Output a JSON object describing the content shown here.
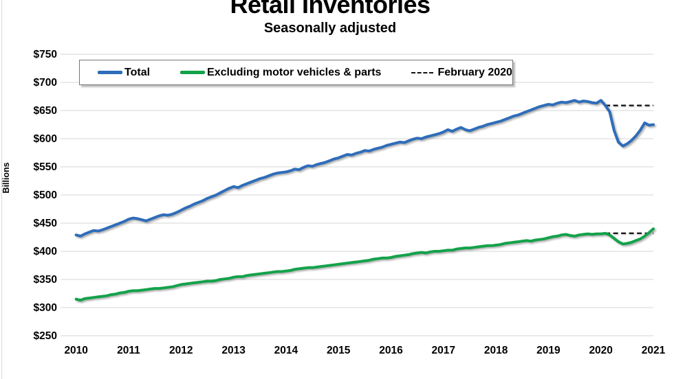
{
  "title": "Retail Inventories",
  "subtitle": "Seasonally adjusted",
  "y_axis_label": "Billions",
  "legend": {
    "items": [
      {
        "label": "Total",
        "color": "#2e6db9",
        "style": "solid"
      },
      {
        "label": "Excluding motor vehicles & parts",
        "color": "#13a24a",
        "style": "solid"
      },
      {
        "label": "February 2020",
        "color": "#111111",
        "style": "dashed"
      }
    ]
  },
  "chart_data": {
    "type": "line",
    "title": "Retail Inventories",
    "subtitle": "Seasonally adjusted",
    "ylabel": "Billions",
    "xlabel": "",
    "grid": true,
    "legend_position": "top",
    "ylim": [
      250,
      750
    ],
    "y_tick_values": [
      750,
      700,
      650,
      600,
      550,
      500,
      450,
      400,
      350,
      300,
      250
    ],
    "y_tick_labels": [
      "$750",
      "$700",
      "$650",
      "$600",
      "$550",
      "$500",
      "$450",
      "$400",
      "$350",
      "$300",
      "$250"
    ],
    "x_frequency": "monthly",
    "x_start": "2010-01",
    "x_end": "2021-01",
    "x_tick_labels": [
      "2010",
      "2011",
      "2012",
      "2013",
      "2014",
      "2015",
      "2016",
      "2017",
      "2018",
      "2019",
      "2020",
      "2021"
    ],
    "series": [
      {
        "name": "Total",
        "style": "solid",
        "color": "#2e6db9",
        "values": [
          429,
          427,
          431,
          434,
          437,
          436,
          438,
          441,
          444,
          447,
          450,
          453,
          457,
          459,
          458,
          456,
          454,
          457,
          460,
          463,
          465,
          464,
          466,
          469,
          473,
          477,
          480,
          484,
          487,
          490,
          494,
          497,
          500,
          504,
          508,
          512,
          515,
          513,
          517,
          520,
          523,
          526,
          529,
          531,
          534,
          537,
          539,
          540,
          541,
          543,
          546,
          545,
          549,
          552,
          551,
          554,
          556,
          558,
          561,
          564,
          566,
          569,
          572,
          571,
          574,
          576,
          579,
          578,
          581,
          583,
          585,
          588,
          590,
          592,
          594,
          593,
          596,
          599,
          601,
          600,
          603,
          605,
          607,
          609,
          612,
          616,
          613,
          617,
          620,
          616,
          614,
          617,
          620,
          622,
          625,
          627,
          629,
          631,
          634,
          637,
          640,
          642,
          645,
          648,
          651,
          654,
          657,
          659,
          661,
          660,
          663,
          665,
          664,
          666,
          668,
          665,
          667,
          666,
          664,
          663,
          668,
          659,
          648,
          615,
          594,
          587,
          591,
          597,
          605,
          615,
          628,
          624,
          625
        ]
      },
      {
        "name": "Excluding motor vehicles & parts",
        "style": "solid",
        "color": "#13a24a",
        "values": [
          315,
          313,
          316,
          317,
          318,
          319,
          320,
          321,
          323,
          324,
          326,
          327,
          329,
          330,
          330,
          331,
          332,
          333,
          334,
          334,
          335,
          336,
          337,
          339,
          341,
          342,
          343,
          344,
          345,
          346,
          347,
          347,
          348,
          350,
          351,
          352,
          354,
          355,
          355,
          357,
          358,
          359,
          360,
          361,
          362,
          363,
          364,
          364,
          365,
          366,
          368,
          369,
          370,
          371,
          371,
          372,
          373,
          374,
          375,
          376,
          377,
          378,
          379,
          380,
          381,
          382,
          383,
          384,
          386,
          387,
          388,
          388,
          389,
          391,
          392,
          393,
          394,
          396,
          397,
          398,
          397,
          399,
          400,
          400,
          401,
          402,
          402,
          404,
          405,
          406,
          406,
          407,
          408,
          409,
          410,
          410,
          411,
          412,
          414,
          415,
          416,
          417,
          418,
          419,
          418,
          420,
          421,
          422,
          424,
          426,
          427,
          429,
          430,
          428,
          427,
          429,
          430,
          431,
          430,
          431,
          431,
          432,
          429,
          423,
          417,
          413,
          414,
          416,
          419,
          422,
          427,
          433,
          440
        ]
      },
      {
        "name": "February 2020 (Total reference)",
        "style": "dashed",
        "color": "#111111",
        "from": "2020-02",
        "value": 659
      },
      {
        "name": "February 2020 (Excluding motor vehicles reference)",
        "style": "dashed",
        "color": "#111111",
        "from": "2020-02",
        "value": 432
      }
    ]
  }
}
